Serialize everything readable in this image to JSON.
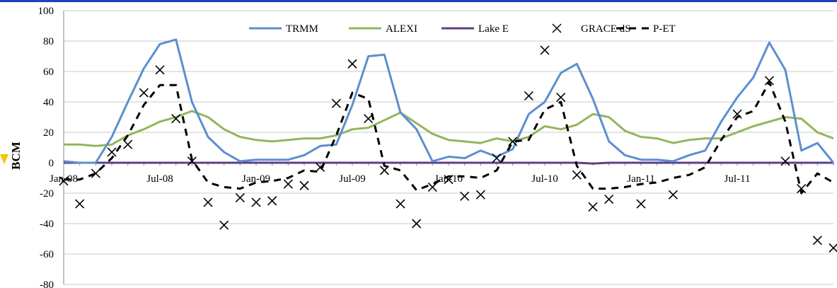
{
  "chart_data": {
    "type": "line",
    "ylabel": "BCM",
    "xlabel": "",
    "ylim": [
      -80,
      100
    ],
    "ytick_step": 20,
    "yticks": [
      "100",
      "80",
      "60",
      "40",
      "20",
      "0",
      "-20",
      "-40",
      "-60",
      "-80"
    ],
    "x_tick_labels": [
      "Jan-08",
      "Jul-08",
      "Jan-09",
      "Jul-09",
      "Jan-10",
      "Jul-10",
      "Jan-11",
      "Jul-11"
    ],
    "x_tick_months": [
      0,
      6,
      12,
      18,
      24,
      30,
      36,
      42
    ],
    "months": 48,
    "grid": "horizontal",
    "legend_placement": "top",
    "series": [
      {
        "name": "TRMM",
        "style": "line",
        "color": "#5b8fd0",
        "values": [
          1,
          0,
          0,
          17,
          40,
          62,
          78,
          81,
          40,
          17,
          7,
          1,
          2,
          2,
          2,
          5,
          11,
          12,
          38,
          70,
          71,
          33,
          22,
          1,
          4,
          3,
          8,
          4,
          9,
          32,
          40,
          59,
          65,
          42,
          14,
          5,
          2,
          2,
          1,
          5,
          8,
          27,
          43,
          56,
          79,
          61,
          8,
          13,
          0
        ]
      },
      {
        "name": "ALEXI",
        "style": "line",
        "color": "#93b55c",
        "values": [
          12,
          12,
          11,
          12,
          18,
          22,
          27,
          30,
          34,
          30,
          22,
          17,
          15,
          14,
          15,
          16,
          16,
          18,
          22,
          23,
          28,
          33,
          26,
          19,
          15,
          14,
          13,
          16,
          14,
          17,
          24,
          22,
          25,
          32,
          30,
          21,
          17,
          16,
          13,
          15,
          16,
          16,
          20,
          24,
          27,
          30,
          29,
          20,
          16
        ]
      },
      {
        "name": "Lake E",
        "style": "line",
        "color": "#5c3f8a",
        "values": [
          0,
          0,
          0,
          0,
          0,
          0,
          0,
          0,
          0,
          0,
          0,
          0,
          0,
          0,
          0,
          0,
          0,
          0,
          0,
          0,
          0,
          0,
          0,
          0,
          0,
          0,
          0,
          0,
          0,
          0,
          0,
          0,
          0,
          -0.5,
          0,
          0,
          0,
          0,
          0,
          0,
          0,
          0,
          0,
          0,
          0,
          0,
          0,
          0,
          0
        ]
      },
      {
        "name": "GRACE dS",
        "style": "marker",
        "color": "#000000",
        "values": [
          -12,
          -27,
          -7,
          7,
          12,
          46,
          61,
          29,
          1,
          -26,
          -41,
          -23,
          -26,
          -25,
          -14,
          -15,
          -3,
          39,
          65,
          29,
          -5,
          -27,
          -40,
          -16,
          -11,
          -22,
          -21,
          3,
          14,
          44,
          74,
          43,
          -8,
          -29,
          -24,
          null,
          -27,
          null,
          -21,
          null,
          null,
          null,
          32,
          null,
          54,
          1,
          -17,
          -51,
          -56
        ]
      },
      {
        "name": "P-ET",
        "style": "dashed",
        "color": "#000000",
        "values": [
          -11,
          -11,
          -7,
          3,
          18,
          38,
          51,
          51,
          2,
          -13,
          -16,
          -17,
          -13,
          -12,
          -10,
          -5,
          -6,
          18,
          46,
          42,
          -2,
          -5,
          -18,
          -14,
          -9,
          -9,
          -10,
          -5,
          14,
          15,
          35,
          40,
          -2,
          -17,
          -17,
          -16,
          -14,
          -13,
          -10,
          -8,
          -3,
          15,
          30,
          34,
          53,
          27,
          -20,
          -7,
          -13
        ]
      }
    ]
  }
}
